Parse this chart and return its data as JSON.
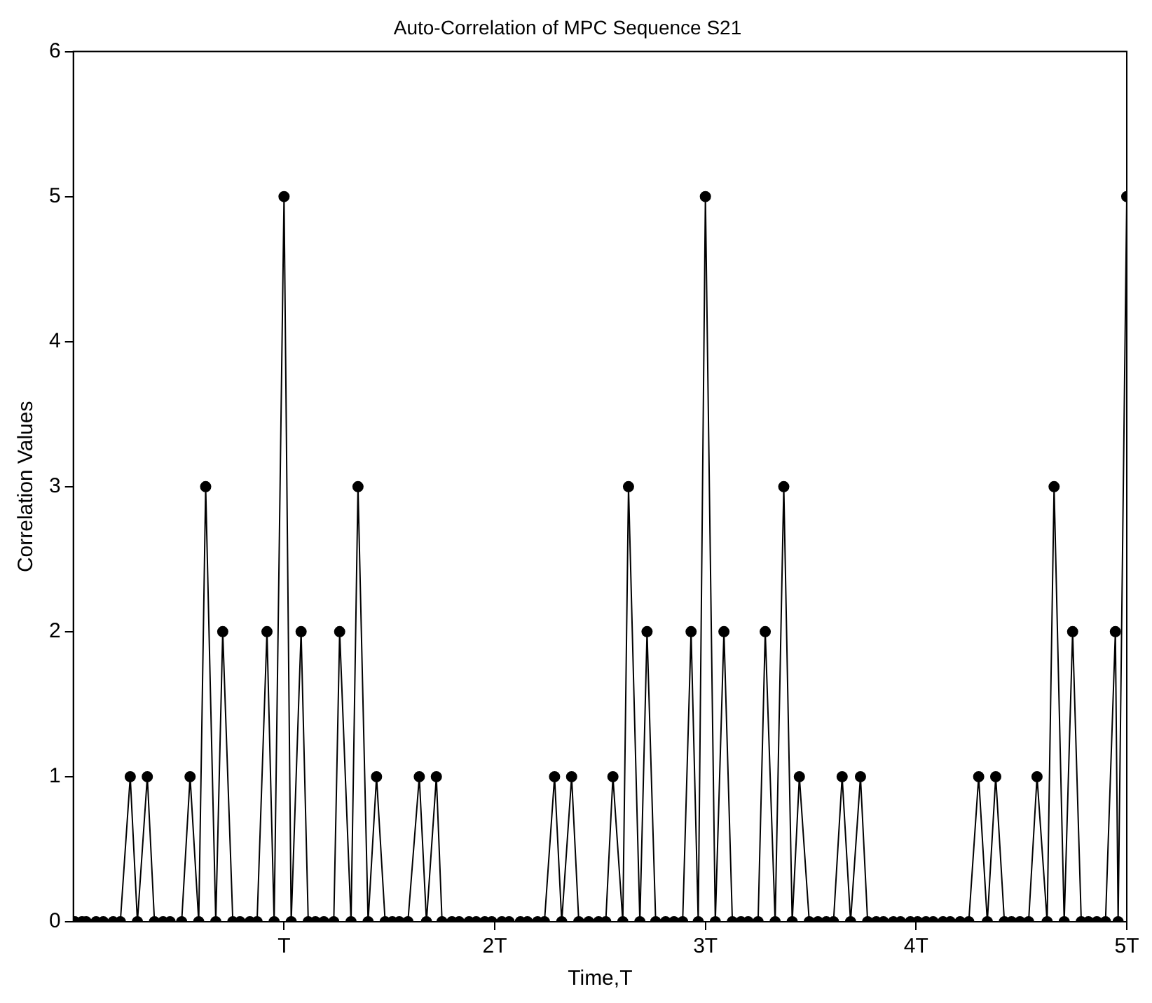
{
  "chart_data": {
    "type": "line",
    "title": "Auto-Correlation of MPC Sequence S21",
    "xlabel": "Time,T",
    "ylabel": "Correlation Values",
    "x": [
      0.007,
      0.041,
      0.061,
      0.108,
      0.142,
      0.189,
      0.223,
      0.27,
      0.304,
      0.351,
      0.385,
      0.426,
      0.459,
      0.514,
      0.554,
      0.595,
      0.628,
      0.676,
      0.709,
      0.757,
      0.791,
      0.838,
      0.872,
      0.919,
      0.953,
      1.0,
      1.034,
      1.081,
      1.115,
      1.149,
      1.189,
      1.236,
      1.264,
      1.318,
      1.351,
      1.399,
      1.439,
      1.48,
      1.514,
      1.547,
      1.588,
      1.642,
      1.676,
      1.723,
      1.75,
      1.797,
      1.831,
      1.878,
      1.912,
      1.953,
      1.986,
      2.034,
      2.068,
      2.122,
      2.155,
      2.203,
      2.236,
      2.284,
      2.318,
      2.365,
      2.399,
      2.446,
      2.493,
      2.527,
      2.561,
      2.608,
      2.635,
      2.689,
      2.723,
      2.764,
      2.811,
      2.851,
      2.892,
      2.932,
      2.966,
      3.0,
      3.047,
      3.088,
      3.128,
      3.169,
      3.203,
      3.25,
      3.284,
      3.331,
      3.372,
      3.412,
      3.446,
      3.493,
      3.534,
      3.574,
      3.608,
      3.649,
      3.689,
      3.736,
      3.77,
      3.811,
      3.845,
      3.892,
      3.926,
      3.973,
      4.007,
      4.047,
      4.081,
      4.128,
      4.162,
      4.209,
      4.25,
      4.297,
      4.338,
      4.378,
      4.419,
      4.453,
      4.493,
      4.534,
      4.574,
      4.622,
      4.655,
      4.703,
      4.743,
      4.784,
      4.818,
      4.858,
      4.899,
      4.946,
      4.959,
      5.0
    ],
    "series": [
      {
        "color": "#000000",
        "values": [
          0,
          0,
          0,
          0,
          0,
          0,
          0,
          1,
          0,
          1,
          0,
          0,
          0,
          0,
          1,
          0,
          3,
          0,
          2,
          0,
          0,
          0,
          0,
          2,
          0,
          5,
          0,
          2,
          0,
          0,
          0,
          0,
          2,
          0,
          3,
          0,
          1,
          0,
          0,
          0,
          0,
          1,
          0,
          1,
          0,
          0,
          0,
          0,
          0,
          0,
          0,
          0,
          0,
          0,
          0,
          0,
          0,
          1,
          0,
          1,
          0,
          0,
          0,
          0,
          1,
          0,
          3,
          0,
          2,
          0,
          0,
          0,
          0,
          2,
          0,
          5,
          0,
          2,
          0,
          0,
          0,
          0,
          2,
          0,
          3,
          0,
          1,
          0,
          0,
          0,
          0,
          1,
          0,
          1,
          0,
          0,
          0,
          0,
          0,
          0,
          0,
          0,
          0,
          0,
          0,
          0,
          0,
          1,
          0,
          1,
          0,
          0,
          0,
          0,
          1,
          0,
          3,
          0,
          2,
          0,
          0,
          0,
          0,
          2,
          0,
          5
        ]
      }
    ],
    "xlim": [
      0,
      5
    ],
    "xticks": [
      {
        "value": 1,
        "label": "T"
      },
      {
        "value": 2,
        "label": "2T"
      },
      {
        "value": 3,
        "label": "3T"
      },
      {
        "value": 4,
        "label": "4T"
      },
      {
        "value": 5,
        "label": "5T"
      }
    ],
    "ylim": [
      0,
      6
    ],
    "yticks": [
      0,
      1,
      2,
      3,
      4,
      5,
      6
    ],
    "grid": false,
    "legend": false,
    "marker": "circle",
    "line_style": "solid"
  }
}
